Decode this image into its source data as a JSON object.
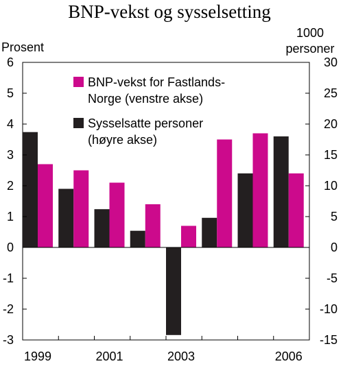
{
  "chart_data": {
    "type": "bar",
    "title": "BNP-vekst og sysselsetting",
    "left_axis": {
      "label": "Prosent",
      "ylim": [
        -3,
        6
      ],
      "ticks": [
        6,
        5,
        4,
        3,
        2,
        1,
        0,
        -1,
        -2,
        -3
      ]
    },
    "right_axis": {
      "label_line1": "1000",
      "label_line2": "personer",
      "ylim": [
        -15,
        30
      ],
      "ticks": [
        30,
        25,
        20,
        15,
        10,
        5,
        0,
        -5,
        -10,
        -15
      ]
    },
    "categories": [
      "1999",
      "2000",
      "2001",
      "2002",
      "2003",
      "2004",
      "2005",
      "2006"
    ],
    "x_tick_labels": [
      "1999",
      "",
      "2001",
      "",
      "2003",
      "",
      "",
      "2006"
    ],
    "series": [
      {
        "name": "Sysselsatte personer (høyre akse)",
        "legend_line1": "Sysselsatte personer",
        "legend_line2": "(høyre akse)",
        "axis": "right",
        "color": "#231f20",
        "values": [
          18.7,
          9.5,
          6.2,
          2.7,
          -14.2,
          4.8,
          12.0,
          18.0
        ]
      },
      {
        "name": "BNP-vekst for Fastlands-Norge (venstre akse)",
        "legend_line1": "BNP-vekst for Fastlands-",
        "legend_line2": "Norge (venstre akse)",
        "axis": "left",
        "color": "#cc0a8c",
        "values": [
          2.7,
          2.5,
          2.1,
          1.4,
          0.7,
          3.5,
          3.7,
          2.4
        ]
      }
    ],
    "legend_position": "top-center",
    "grid": false
  }
}
